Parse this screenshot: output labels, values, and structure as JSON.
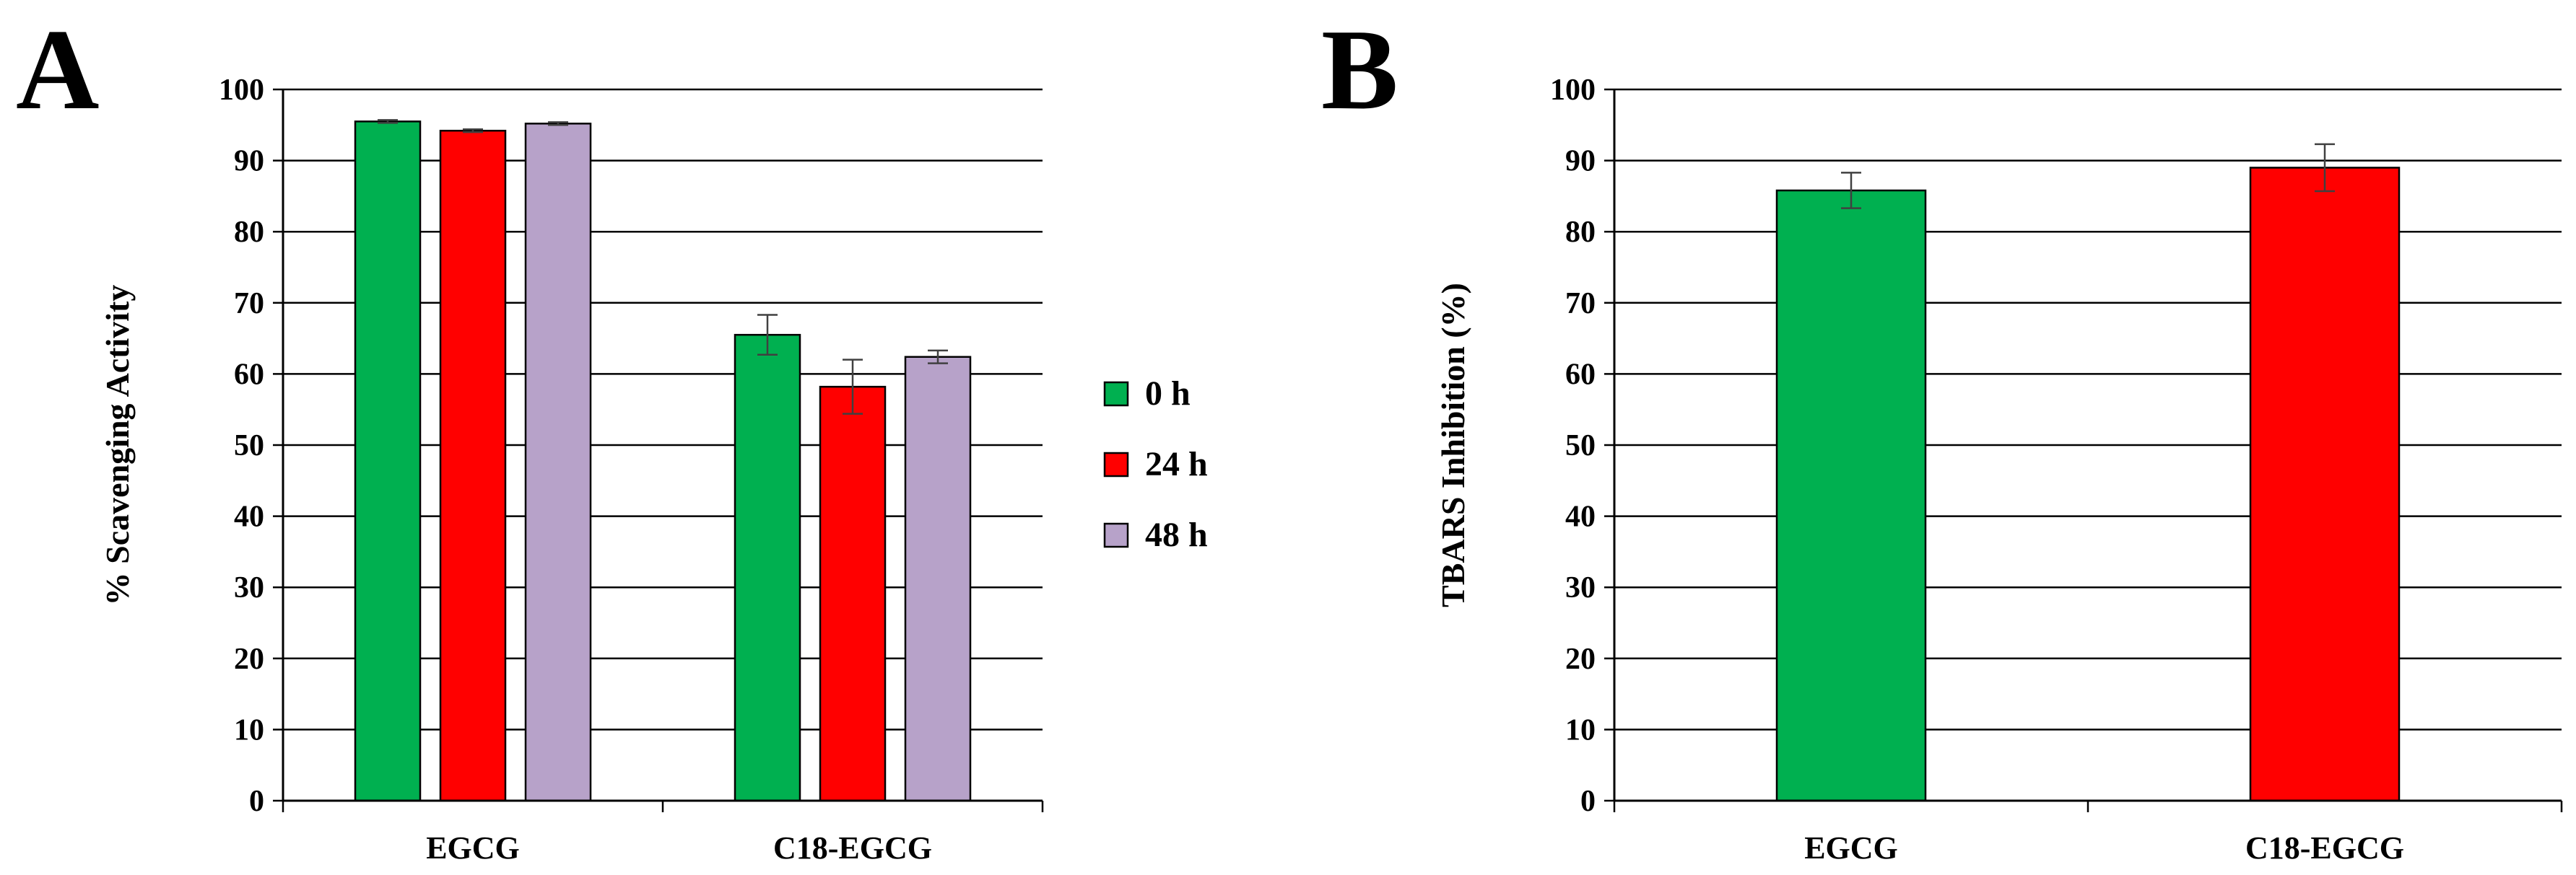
{
  "chart_data": [
    {
      "panel": "A",
      "type": "bar",
      "title": "",
      "xlabel": "",
      "ylabel": "% Scavenging Activity",
      "ylim": [
        0,
        100
      ],
      "yticks": [
        0,
        10,
        20,
        30,
        40,
        50,
        60,
        70,
        80,
        90,
        100
      ],
      "grid": true,
      "legend": "right",
      "categories": [
        "EGCG",
        "C18-EGCG"
      ],
      "series": [
        {
          "name": "0 h",
          "color": "#00b050",
          "values": [
            95.5,
            65.5
          ],
          "errors": [
            0.2,
            2.8
          ]
        },
        {
          "name": "24 h",
          "color": "#ff0000",
          "values": [
            94.2,
            58.2
          ],
          "errors": [
            0.2,
            3.8
          ]
        },
        {
          "name": "48 h",
          "color": "#b7a2c9",
          "values": [
            95.2,
            62.4
          ],
          "errors": [
            0.2,
            0.9
          ]
        }
      ]
    },
    {
      "panel": "B",
      "type": "bar",
      "title": "",
      "xlabel": "",
      "ylabel": "TBARS Inhibition (%)",
      "ylim": [
        0,
        100
      ],
      "yticks": [
        0,
        10,
        20,
        30,
        40,
        50,
        60,
        70,
        80,
        90,
        100
      ],
      "grid": true,
      "categories": [
        "EGCG",
        "C18-EGCG"
      ],
      "colors": [
        "#00b050",
        "#ff0000"
      ],
      "values": [
        85.8,
        89.0
      ],
      "errors": [
        2.5,
        3.3
      ]
    }
  ]
}
